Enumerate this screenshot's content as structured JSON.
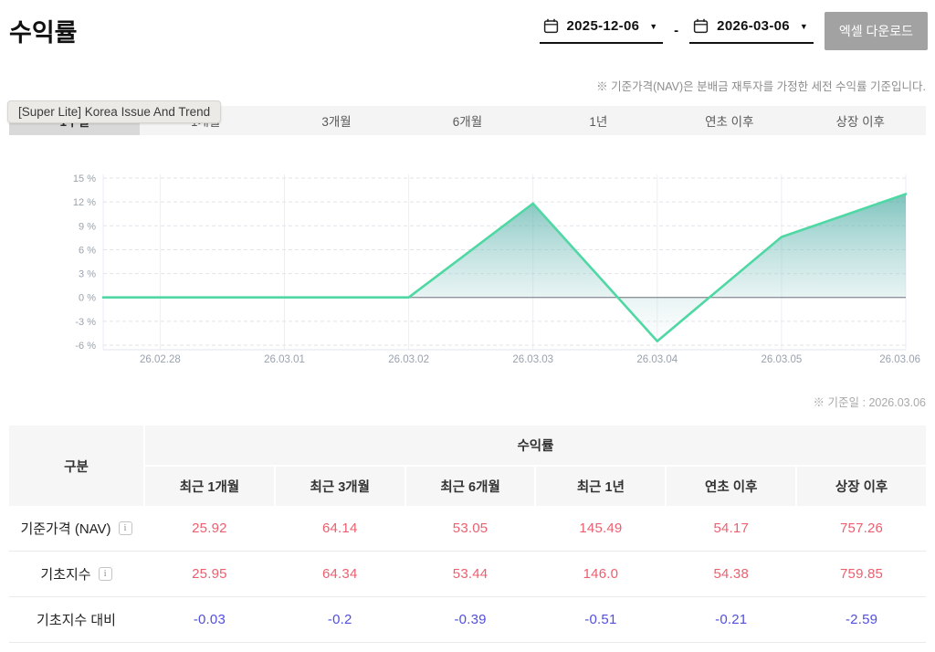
{
  "page": {
    "title": "수익률"
  },
  "toolbar": {
    "date_from": "2025-12-06",
    "date_to": "2026-03-06",
    "range_separator": "-",
    "dropdown_icon": "▼",
    "excel_button": "엑셀 다운로드"
  },
  "notes": {
    "nav_note": "※ 기준가격(NAV)은 분배금 재투자를 가정한 세전 수익률 기준입니다.",
    "base_date": "※ 기준일 : 2026.03.06"
  },
  "tooltip": {
    "text": "[Super Lite] Korea Issue And Trend"
  },
  "tabs": {
    "items": [
      "1주일",
      "1개월",
      "3개월",
      "6개월",
      "1년",
      "연초 이후",
      "상장 이후"
    ],
    "selected_index": 0
  },
  "chart_data": {
    "type": "area",
    "categories": [
      "26.02.28",
      "26.03.01",
      "26.03.02",
      "26.03.03",
      "26.03.04",
      "26.03.05",
      "26.03.06"
    ],
    "series": [
      {
        "name": "수익률",
        "values": [
          0,
          0,
          0,
          11.8,
          -5.5,
          7.6,
          13.0
        ]
      }
    ],
    "extends_to_left_edge": true,
    "y_ticks": [
      15,
      12,
      9,
      6,
      3,
      0,
      -3,
      -6
    ],
    "ylim": [
      -6,
      15
    ],
    "y_tick_suffix": " %",
    "grid": true,
    "legend": "none",
    "line_color": "#4fd8a3",
    "fill_top_color": "#3aa49a",
    "zero_line_color": "#8e939c"
  },
  "table": {
    "corner_header": "구분",
    "group_header": "수익률",
    "columns": [
      "최근 1개월",
      "최근 3개월",
      "최근 6개월",
      "최근 1년",
      "연초 이후",
      "상장 이후"
    ],
    "rows": [
      {
        "label": "기준가격 (NAV)",
        "has_info_icon": true,
        "info_icon_glyph": "i",
        "values": [
          "25.92",
          "64.14",
          "53.05",
          "145.49",
          "54.17",
          "757.26"
        ],
        "value_color": "#ec5f6f"
      },
      {
        "label": "기초지수",
        "has_info_icon": true,
        "info_icon_glyph": "i",
        "values": [
          "25.95",
          "64.34",
          "53.44",
          "146.0",
          "54.38",
          "759.85"
        ],
        "value_color": "#ec5f6f"
      },
      {
        "label": "기초지수 대비",
        "has_info_icon": false,
        "info_icon_glyph": "",
        "values": [
          "-0.03",
          "-0.2",
          "-0.39",
          "-0.51",
          "-0.21",
          "-2.59"
        ],
        "value_color": "#514fdd"
      }
    ]
  },
  "colors": {
    "positive_value": "#ec5f6f",
    "negative_value": "#514fdd",
    "tab_selected_bg": "#d9d9d9",
    "tab_bg": "#f4f4f4",
    "excel_button_bg": "#a2a2a2",
    "grid_line": "#e3e3ea",
    "axis_label": "#9aa2ac"
  }
}
